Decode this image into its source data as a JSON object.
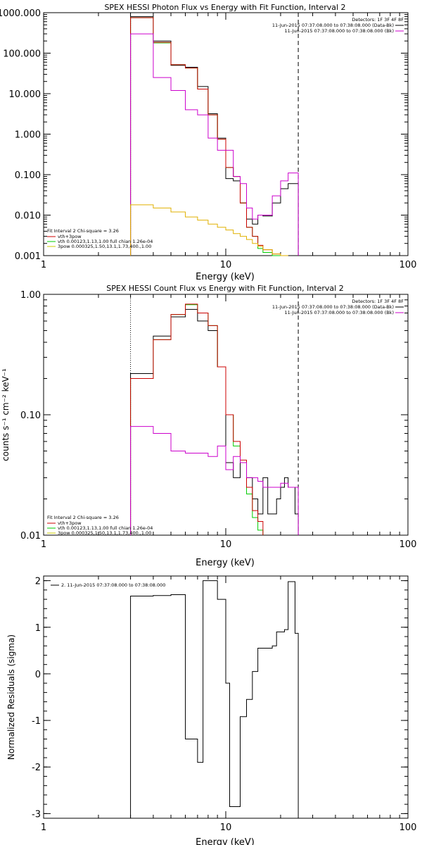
{
  "chart_data": [
    {
      "type": "line",
      "title": "SPEX HESSI Photon Flux vs Energy with Fit Function, Interval 2",
      "xlabel": "Energy (keV)",
      "ylabel": "",
      "xscale": "log",
      "yscale": "log",
      "xlim": [
        1,
        100
      ],
      "ylim": [
        0.001,
        1000
      ],
      "xticks": [
        {
          "v": 1,
          "label": "1"
        },
        {
          "v": 10,
          "label": "10"
        },
        {
          "v": 100,
          "label": "100"
        }
      ],
      "yticks": [
        {
          "v": 1000,
          "label": "1000.000"
        },
        {
          "v": 100,
          "label": "100.000"
        },
        {
          "v": 10,
          "label": "10.000"
        },
        {
          "v": 1,
          "label": "1.000"
        },
        {
          "v": 0.1,
          "label": "0.100"
        },
        {
          "v": 0.01,
          "label": "0.010"
        },
        {
          "v": 0.001,
          "label": "0.001"
        }
      ],
      "vlines": [
        {
          "x": 3,
          "style": "dotted"
        },
        {
          "x": 25,
          "style": "dashed"
        }
      ],
      "legend_top": {
        "placement": "top-right",
        "header": "Detectors: 1F 3F 4F 8F",
        "entries": [
          {
            "label": "11-Jun-2015 07:37:08.000 to 07:38:08.000 (Data-Bk)",
            "color": "#000000"
          },
          {
            "label": "11-Jun-2015 07:37:08.000 to 07:38:08.000 (Bk)",
            "color": "#cc00cc"
          }
        ]
      },
      "legend_fit": {
        "placement": "bottom-left",
        "header": "Fit Interval  2   Chi-square = 3.26",
        "entries": [
          {
            "label": "vth+3pow",
            "color": "#cc0000"
          },
          {
            "label": "vth 0.00123,1.13,1.00  full chian 1.26e-04",
            "color": "#00cc00"
          },
          {
            "label": "3pow 0.000325,1.50,13.1,1.73,400.,1.00",
            "color": "#cccc00"
          }
        ]
      },
      "series": [
        {
          "color": "#000000",
          "edges": [
            3,
            4,
            5,
            6,
            7,
            8,
            9,
            10,
            11,
            12,
            13,
            14,
            15,
            16,
            18,
            20,
            22,
            24,
            25
          ],
          "values": [
            800,
            200,
            50,
            45,
            15,
            3.2,
            0.8,
            0.08,
            0.07,
            0.02,
            0.008,
            0.006,
            0.01,
            0.0095,
            0.02,
            0.045,
            0.06,
            0.06
          ]
        },
        {
          "color": "#00cc00",
          "edges": [
            3,
            4,
            5,
            6,
            7,
            8,
            9,
            10,
            11,
            12,
            13,
            14,
            15,
            16,
            18,
            20,
            22
          ],
          "values": [
            750,
            180,
            52,
            43,
            13,
            3.0,
            0.75,
            0.15,
            0.09,
            0.02,
            0.005,
            0.003,
            0.0015,
            0.0012,
            0.001,
            0.0007
          ]
        },
        {
          "color": "#cc0000",
          "edges": [
            3,
            4,
            5,
            6,
            7,
            8,
            9,
            10,
            11,
            12,
            13,
            14,
            15,
            16,
            18,
            20,
            22
          ],
          "values": [
            750,
            185,
            52,
            43,
            13,
            3.0,
            0.75,
            0.15,
            0.09,
            0.02,
            0.005,
            0.003,
            0.0018,
            0.0014,
            0.0011,
            0.0008
          ]
        },
        {
          "color": "#cc00cc",
          "edges": [
            3,
            4,
            5,
            6,
            7,
            8,
            9,
            10,
            11,
            12,
            13,
            14,
            15,
            16,
            18,
            20,
            22,
            24,
            25
          ],
          "values": [
            300,
            25,
            12,
            4,
            3,
            0.8,
            0.4,
            0.4,
            0.09,
            0.06,
            0.015,
            0.008,
            0.01,
            0.01,
            0.03,
            0.07,
            0.11,
            0.11
          ]
        },
        {
          "color": "#e0b000",
          "edges": [
            3,
            4,
            5,
            6,
            7,
            8,
            9,
            10,
            11,
            12,
            13,
            14,
            15,
            16,
            18,
            20,
            22
          ],
          "values": [
            0.018,
            0.015,
            0.012,
            0.009,
            0.0075,
            0.006,
            0.005,
            0.0043,
            0.0035,
            0.003,
            0.0025,
            0.002,
            0.0017,
            0.0014,
            0.0011,
            0.0009
          ]
        }
      ]
    },
    {
      "type": "line",
      "title": "SPEX HESSI Count Flux vs Energy with Fit Function, Interval 2",
      "xlabel": "Energy (keV)",
      "ylabel": "counts s⁻¹ cm⁻² keV⁻¹",
      "xscale": "log",
      "yscale": "log",
      "xlim": [
        1,
        100
      ],
      "ylim": [
        0.01,
        1.0
      ],
      "xticks": [
        {
          "v": 1,
          "label": "1"
        },
        {
          "v": 10,
          "label": "10"
        },
        {
          "v": 100,
          "label": "100"
        }
      ],
      "yticks": [
        {
          "v": 1,
          "label": "1.00"
        },
        {
          "v": 0.1,
          "label": "0.10"
        },
        {
          "v": 0.01,
          "label": "0.01"
        }
      ],
      "vlines": [
        {
          "x": 3,
          "style": "dotted"
        },
        {
          "x": 25,
          "style": "dashed"
        }
      ],
      "legend_top": {
        "placement": "top-right",
        "header": "Detectors: 1F 3F 4F 8F",
        "entries": [
          {
            "label": "11-Jun-2015 07:37:08.000 to 07:38:08.000 (Data-Bk)",
            "color": "#000000"
          },
          {
            "label": "11-Jun-2015 07:37:08.000 to 07:38:08.000 (Bk)",
            "color": "#cc00cc"
          }
        ]
      },
      "legend_fit": {
        "placement": "bottom-left",
        "header": "Fit Interval  2   Chi-square = 3.26",
        "entries": [
          {
            "label": "vth+3pow",
            "color": "#cc0000"
          },
          {
            "label": "vth 0.00123,1.13,1.00  full chian 1.26e-04",
            "color": "#00cc00"
          },
          {
            "label": "3pow 0.000325,1.50,13.1,1.73,400.,1.00",
            "color": "#cccc00"
          }
        ]
      },
      "series": [
        {
          "color": "#000000",
          "edges": [
            3,
            3.5,
            4,
            5,
            6,
            7,
            7.5,
            8,
            9,
            10,
            10.5,
            11,
            12,
            13,
            14,
            15,
            16,
            17,
            18,
            19,
            20,
            21,
            22,
            24,
            25
          ],
          "values": [
            0.22,
            0.22,
            0.45,
            0.65,
            0.75,
            0.6,
            0.6,
            0.5,
            0.25,
            0.04,
            0.04,
            0.03,
            0.04,
            0.03,
            0.02,
            0.015,
            0.03,
            0.015,
            0.015,
            0.02,
            0.025,
            0.03,
            0.025,
            0.015
          ]
        },
        {
          "color": "#00cc00",
          "edges": [
            3,
            3.5,
            4,
            5,
            6,
            7,
            7.5,
            8,
            9,
            10,
            10.5,
            11,
            12,
            13,
            14,
            15,
            16
          ],
          "values": [
            0.2,
            0.2,
            0.42,
            0.68,
            0.82,
            0.7,
            0.7,
            0.55,
            0.25,
            0.1,
            0.1,
            0.055,
            0.04,
            0.022,
            0.014,
            0.011
          ]
        },
        {
          "color": "#cc0000",
          "edges": [
            3,
            3.5,
            4,
            5,
            6,
            7,
            7.5,
            8,
            9,
            10,
            10.5,
            11,
            12,
            13,
            14,
            15,
            16
          ],
          "values": [
            0.2,
            0.2,
            0.42,
            0.68,
            0.83,
            0.7,
            0.7,
            0.55,
            0.25,
            0.1,
            0.1,
            0.06,
            0.042,
            0.025,
            0.016,
            0.013
          ]
        },
        {
          "color": "#cc00cc",
          "edges": [
            3,
            3.5,
            4,
            5,
            6,
            7,
            7.5,
            8,
            9,
            10,
            10.5,
            11,
            12,
            13,
            14,
            15,
            16,
            17,
            18,
            19,
            20,
            21,
            22,
            24,
            25
          ],
          "values": [
            0.08,
            0.08,
            0.07,
            0.05,
            0.048,
            0.048,
            0.048,
            0.045,
            0.055,
            0.035,
            0.035,
            0.045,
            0.04,
            0.03,
            0.03,
            0.028,
            0.025,
            0.025,
            0.025,
            0.025,
            0.027,
            0.027,
            0.025,
            0.025
          ]
        }
      ]
    },
    {
      "type": "line",
      "title": "",
      "xlabel": "Energy (keV)",
      "ylabel": "Normalized Residuals (sigma)",
      "xscale": "log",
      "yscale": "linear",
      "xlim": [
        1,
        100
      ],
      "ylim": [
        -3.1,
        2.1
      ],
      "xticks": [
        {
          "v": 1,
          "label": "1"
        },
        {
          "v": 10,
          "label": "10"
        },
        {
          "v": 100,
          "label": "100"
        }
      ],
      "yticks": [
        {
          "v": 2,
          "label": "2"
        },
        {
          "v": 1,
          "label": "1"
        },
        {
          "v": 0,
          "label": "0"
        },
        {
          "v": -1,
          "label": "-1"
        },
        {
          "v": -2,
          "label": "-2"
        },
        {
          "v": -3,
          "label": "-3"
        }
      ],
      "legend_top": {
        "placement": "top-left",
        "header": "",
        "entries": [
          {
            "label": "2. 11-Jun-2015 07:37:08.000 to 07:38:08.000",
            "color": "#000000"
          }
        ]
      },
      "series": [
        {
          "color": "#000000",
          "edges": [
            3,
            3.5,
            4,
            5,
            6,
            7,
            7.5,
            8,
            9,
            10,
            10.5,
            11,
            12,
            13,
            14,
            15,
            16,
            17,
            18,
            19,
            20,
            21,
            22,
            24,
            25
          ],
          "values": [
            1.67,
            1.67,
            1.68,
            1.7,
            -1.4,
            -1.9,
            2.0,
            2.0,
            1.6,
            -0.2,
            -2.85,
            -2.85,
            -0.92,
            -0.55,
            0.05,
            0.55,
            0.55,
            0.55,
            0.6,
            0.9,
            0.9,
            0.95,
            1.98,
            0.87
          ]
        }
      ]
    }
  ]
}
